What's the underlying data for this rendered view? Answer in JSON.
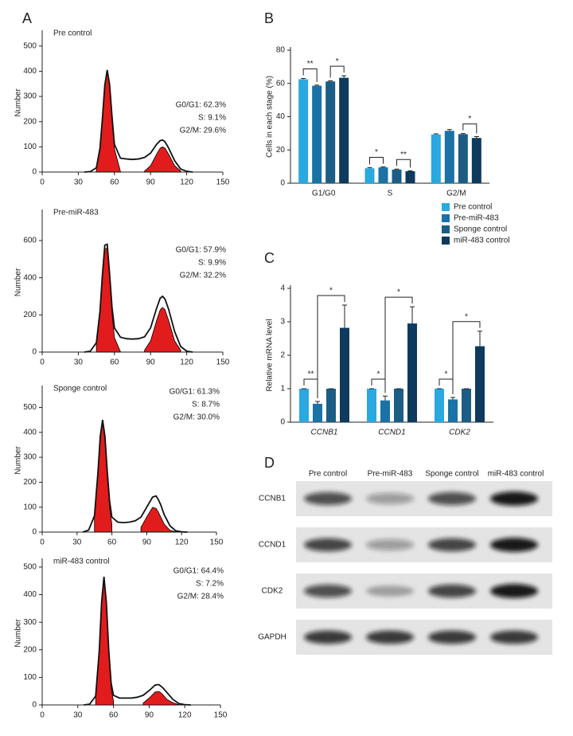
{
  "panels": [
    "A",
    "B",
    "C",
    "D"
  ],
  "chart_data": [
    {
      "type": "area",
      "title": "Pre control",
      "ylabel": "Number",
      "stats": [
        "G0/G1: 62.3%",
        "S: 9.1%",
        "G2/M: 29.6%"
      ],
      "x": [
        35,
        40,
        45,
        48,
        50,
        52,
        54,
        56,
        58,
        60,
        65,
        70,
        75,
        80,
        85,
        90,
        95,
        98,
        100,
        102,
        105,
        110,
        115,
        120,
        125
      ],
      "xlim": [
        0,
        150
      ],
      "xticks": [
        0,
        30,
        60,
        90,
        120,
        150
      ],
      "ylim": [
        0,
        550
      ],
      "yticks": [
        0,
        100,
        200,
        300,
        400,
        500
      ],
      "series": [
        {
          "color": "#e01010",
          "fill": true,
          "values": [
            null,
            null,
            15,
            92,
            208,
            340,
            400,
            340,
            208,
            92,
            2,
            null,
            null,
            null,
            null,
            null,
            null,
            null,
            null,
            null,
            null,
            null,
            null,
            null,
            null
          ]
        },
        {
          "color": "#e01010",
          "fill": true,
          "values": [
            null,
            null,
            null,
            null,
            null,
            null,
            null,
            null,
            null,
            null,
            null,
            null,
            null,
            null,
            4,
            25,
            71,
            95,
            100,
            95,
            71,
            25,
            4,
            null,
            null
          ]
        },
        {
          "color": "#111111",
          "fill": false,
          "values": [
            0,
            2,
            17,
            95,
            212,
            345,
            405,
            347,
            220,
            110,
            55,
            52,
            50,
            52,
            58,
            75,
            110,
            125,
            127,
            120,
            95,
            45,
            12,
            3,
            0
          ]
        }
      ]
    },
    {
      "type": "area",
      "title": "Pre-miR-483",
      "ylabel": "Number",
      "stats": [
        "G0/G1: 57.9%",
        "S: 9.9%",
        "G2/M: 32.2%"
      ],
      "x": [
        35,
        40,
        45,
        48,
        50,
        52,
        54,
        56,
        58,
        60,
        65,
        70,
        75,
        80,
        85,
        90,
        95,
        98,
        100,
        102,
        105,
        110,
        115,
        120,
        125
      ],
      "xlim": [
        0,
        150
      ],
      "xticks": [
        0,
        30,
        60,
        90,
        120,
        150
      ],
      "ylim": [
        0,
        750
      ],
      "yticks": [
        0,
        200,
        400,
        600
      ],
      "series": [
        {
          "color": "#e01010",
          "fill": true,
          "values": [
            null,
            null,
            41,
            209,
            400,
            557,
            557,
            400,
            209,
            78,
            2,
            null,
            null,
            null,
            null,
            null,
            null,
            null,
            null,
            null,
            null,
            null,
            null,
            null,
            null
          ]
        },
        {
          "color": "#e01010",
          "fill": true,
          "values": [
            null,
            null,
            null,
            null,
            null,
            null,
            null,
            null,
            null,
            null,
            null,
            null,
            null,
            null,
            10,
            60,
            170,
            228,
            240,
            228,
            170,
            60,
            10,
            null,
            null
          ]
        },
        {
          "color": "#111111",
          "fill": false,
          "values": [
            0,
            5,
            50,
            220,
            415,
            575,
            580,
            420,
            240,
            130,
            80,
            72,
            70,
            72,
            82,
            130,
            235,
            290,
            300,
            285,
            230,
            110,
            30,
            5,
            0
          ]
        }
      ]
    },
    {
      "type": "area",
      "title": "Sponge control",
      "ylabel": "Number",
      "stats": [
        "G0/G1: 61.3%",
        "S: 8.7%",
        "G2/M: 30.0%"
      ],
      "x": [
        35,
        40,
        45,
        48,
        50,
        52,
        54,
        56,
        58,
        60,
        65,
        70,
        75,
        80,
        85,
        90,
        95,
        98,
        100,
        102,
        105,
        110,
        115,
        120,
        125
      ],
      "xlim": [
        0,
        150
      ],
      "xticks": [
        0,
        30,
        60,
        90,
        120,
        150
      ],
      "ylim": [
        0,
        575
      ],
      "yticks": [
        0,
        100,
        200,
        300,
        400,
        500
      ],
      "series": [
        {
          "color": "#e01010",
          "fill": true,
          "values": [
            null,
            null,
            59,
            229,
            374,
            440,
            374,
            229,
            101,
            31,
            null,
            null,
            null,
            null,
            null,
            null,
            null,
            null,
            null,
            null,
            null,
            null,
            null,
            null,
            null
          ]
        },
        {
          "color": "#e01010",
          "fill": true,
          "values": [
            null,
            null,
            null,
            null,
            null,
            null,
            null,
            null,
            null,
            null,
            null,
            null,
            null,
            null,
            19,
            61,
            99,
            95,
            80,
            61,
            32,
            7,
            1,
            null,
            null
          ]
        },
        {
          "color": "#111111",
          "fill": false,
          "values": [
            0,
            8,
            65,
            240,
            385,
            450,
            385,
            245,
            125,
            60,
            40,
            38,
            40,
            45,
            60,
            100,
            140,
            145,
            130,
            110,
            70,
            25,
            5,
            1,
            0
          ]
        }
      ]
    },
    {
      "type": "area",
      "title": "miR-483 control",
      "ylabel": "Number",
      "stats": [
        "G0/G1: 64.4%",
        "S: 7.2%",
        "G2/M: 28.4%"
      ],
      "x": [
        35,
        40,
        45,
        48,
        50,
        52,
        54,
        56,
        58,
        60,
        65,
        70,
        75,
        80,
        85,
        90,
        95,
        98,
        100,
        102,
        105,
        110,
        115,
        120,
        125
      ],
      "xlim": [
        0,
        150
      ],
      "xticks": [
        0,
        30,
        60,
        90,
        120,
        150
      ],
      "ylim": [
        0,
        520
      ],
      "yticks": [
        0,
        100,
        200,
        300,
        400,
        500
      ],
      "series": [
        {
          "color": "#e01010",
          "fill": true,
          "values": [
            null,
            null,
            30,
            190,
            368,
            460,
            368,
            190,
            62,
            14,
            null,
            null,
            null,
            null,
            null,
            null,
            null,
            null,
            null,
            null,
            null,
            null,
            null,
            null,
            null
          ]
        },
        {
          "color": "#e01010",
          "fill": true,
          "values": [
            null,
            null,
            null,
            null,
            null,
            null,
            null,
            null,
            null,
            null,
            null,
            null,
            null,
            null,
            7,
            25,
            47,
            49,
            44,
            35,
            20,
            8,
            1,
            null,
            null
          ]
        },
        {
          "color": "#111111",
          "fill": false,
          "values": [
            0,
            3,
            32,
            195,
            372,
            465,
            372,
            200,
            80,
            35,
            25,
            25,
            25,
            28,
            35,
            52,
            72,
            74,
            68,
            60,
            45,
            20,
            5,
            1,
            0
          ]
        }
      ]
    },
    {
      "type": "bar",
      "ylabel": "Cells in each stage (%)",
      "categories": [
        "G1/G0",
        "S",
        "G2/M"
      ],
      "ylim": [
        0,
        80
      ],
      "yticks": [
        0,
        20,
        40,
        60,
        80
      ],
      "pairs": [
        [
          0,
          1
        ],
        [
          2,
          3
        ]
      ],
      "significance": [
        [
          "**",
          "*"
        ],
        [
          "*",
          "**"
        ],
        [
          null,
          "*"
        ]
      ],
      "series": [
        {
          "color": "#2aa8e0",
          "values": [
            62.5,
            9.0,
            29.3
          ],
          "errors": [
            0.5,
            0.4,
            0.4
          ]
        },
        {
          "color": "#1a72a6",
          "values": [
            58.6,
            9.5,
            31.5
          ],
          "errors": [
            0.4,
            0.3,
            0.8
          ]
        },
        {
          "color": "#1b5d84",
          "values": [
            61.2,
            8.2,
            29.5
          ],
          "errors": [
            0.4,
            0.3,
            0.4
          ]
        },
        {
          "color": "#0e3a5e",
          "values": [
            63.4,
            7.2,
            27.2
          ],
          "errors": [
            1.2,
            0.3,
            0.8
          ]
        }
      ]
    },
    {
      "type": "bar",
      "ylabel": "Relative mRNA level",
      "categories": [
        "CCNB1",
        "CCND1",
        "CDK2"
      ],
      "italic_categories": true,
      "ylim": [
        0,
        4
      ],
      "yticks": [
        0,
        1,
        2,
        3,
        4
      ],
      "pairs": [
        [
          0,
          1
        ],
        [
          1,
          3
        ]
      ],
      "legend": "top-right",
      "significance": [
        [
          "**",
          "*"
        ],
        [
          "*",
          "*"
        ],
        [
          "*",
          "*"
        ]
      ],
      "series": [
        {
          "name": "Pre control",
          "color": "#2aa8e0",
          "values": [
            1,
            1,
            1
          ],
          "errors": [
            0,
            0,
            0
          ]
        },
        {
          "name": "Pre-miR-483",
          "color": "#1a72a6",
          "values": [
            0.55,
            0.65,
            0.68
          ],
          "errors": [
            0.07,
            0.13,
            0.06
          ]
        },
        {
          "name": "Sponge control",
          "color": "#1b5d84",
          "values": [
            1,
            1,
            1
          ],
          "errors": [
            0,
            0,
            0
          ]
        },
        {
          "name": "miR-483 control",
          "color": "#0e3a5e",
          "values": [
            2.82,
            2.95,
            2.27
          ],
          "errors": [
            0.68,
            0.5,
            0.45
          ]
        }
      ]
    }
  ],
  "blot": {
    "columns": [
      "Pre control",
      "Pre-miR-483",
      "Sponge control",
      "miR-483 control"
    ],
    "rows": [
      "CCNB1",
      "CCND1",
      "CDK2",
      "GAPDH"
    ]
  }
}
